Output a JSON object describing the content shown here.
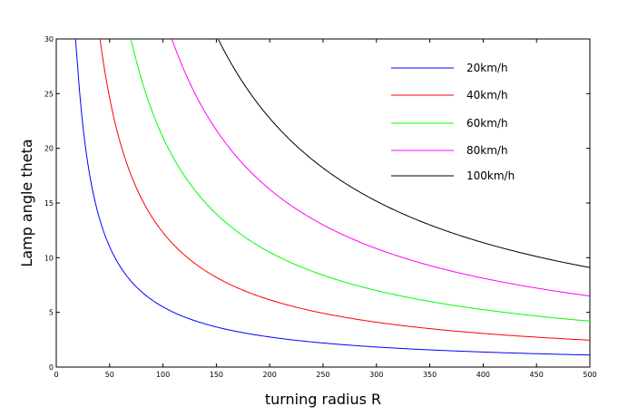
{
  "chart_data": {
    "type": "line",
    "title": "",
    "xlabel": "turning radius R",
    "ylabel": "Lamp angle theta",
    "xlim": [
      0,
      500
    ],
    "ylim": [
      0,
      30
    ],
    "xticks": [
      0,
      50,
      100,
      150,
      200,
      250,
      300,
      350,
      400,
      450,
      500
    ],
    "yticks": [
      0,
      5,
      10,
      15,
      20,
      25,
      30
    ],
    "grid": false,
    "legend_position": "top-right",
    "series": [
      {
        "name": "20km/h",
        "color": "#0000ff",
        "K": 550,
        "points": [
          [
            18,
            30
          ],
          [
            25,
            22
          ],
          [
            30,
            18.3
          ],
          [
            40,
            13.7
          ],
          [
            50,
            11
          ],
          [
            60,
            9.2
          ],
          [
            75,
            7.3
          ],
          [
            100,
            5.5
          ],
          [
            125,
            4.4
          ],
          [
            150,
            3.7
          ],
          [
            200,
            2.75
          ],
          [
            250,
            2.2
          ],
          [
            300,
            1.8
          ],
          [
            350,
            1.6
          ],
          [
            400,
            1.4
          ],
          [
            450,
            1.2
          ],
          [
            500,
            1.1
          ]
        ]
      },
      {
        "name": "40km/h",
        "color": "#ff0000",
        "K": 1230,
        "points": [
          [
            41,
            30
          ],
          [
            50,
            24.6
          ],
          [
            60,
            20.5
          ],
          [
            75,
            16.4
          ],
          [
            100,
            12.3
          ],
          [
            125,
            9.8
          ],
          [
            150,
            8.2
          ],
          [
            200,
            6.15
          ],
          [
            250,
            4.9
          ],
          [
            300,
            4.1
          ],
          [
            350,
            3.5
          ],
          [
            400,
            3.1
          ],
          [
            450,
            2.7
          ],
          [
            500,
            2.5
          ]
        ]
      },
      {
        "name": "60km/h",
        "color": "#00ff00",
        "K": 2100,
        "points": [
          [
            70,
            30
          ],
          [
            80,
            26.3
          ],
          [
            100,
            21
          ],
          [
            125,
            16.8
          ],
          [
            150,
            14
          ],
          [
            200,
            10.5
          ],
          [
            250,
            8.4
          ],
          [
            300,
            7
          ],
          [
            350,
            6
          ],
          [
            400,
            5.25
          ],
          [
            450,
            4.7
          ],
          [
            500,
            4.2
          ]
        ]
      },
      {
        "name": "80km/h",
        "color": "#ff00ff",
        "K": 3250,
        "points": [
          [
            108,
            30
          ],
          [
            125,
            26
          ],
          [
            150,
            21.7
          ],
          [
            200,
            16.25
          ],
          [
            250,
            13
          ],
          [
            300,
            10.8
          ],
          [
            350,
            9.3
          ],
          [
            400,
            8.1
          ],
          [
            450,
            7.2
          ],
          [
            500,
            6.5
          ]
        ]
      },
      {
        "name": "100km/h",
        "color": "#000000",
        "K": 4550,
        "points": [
          [
            152,
            30
          ],
          [
            175,
            26
          ],
          [
            200,
            22.75
          ],
          [
            250,
            18.2
          ],
          [
            300,
            15.2
          ],
          [
            350,
            13
          ],
          [
            400,
            11.4
          ],
          [
            450,
            10.1
          ],
          [
            500,
            9.1
          ]
        ]
      }
    ]
  }
}
